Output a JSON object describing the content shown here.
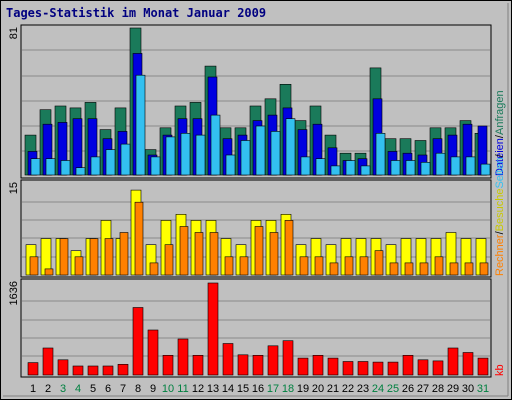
{
  "chart_data": {
    "type": "bar",
    "title": "Tages-Statistik im Monat Januar 2009",
    "days": [
      "1",
      "2",
      "3",
      "4",
      "5",
      "6",
      "7",
      "8",
      "9",
      "10",
      "11",
      "12",
      "13",
      "14",
      "15",
      "16",
      "17",
      "18",
      "19",
      "20",
      "21",
      "22",
      "23",
      "24",
      "25",
      "26",
      "27",
      "28",
      "29",
      "30",
      "31"
    ],
    "weekend_days": [
      "3",
      "4",
      "10",
      "11",
      "17",
      "18",
      "24",
      "25",
      "31"
    ],
    "panels": [
      {
        "id": "top",
        "max_label": "81",
        "ymax": 81,
        "series": [
          {
            "name": "Anfragen",
            "color": "#1a7a5a",
            "values": [
              22,
              36,
              38,
              37,
              40,
              25,
              37,
              81,
              14,
              26,
              38,
              40,
              60,
              26,
              26,
              38,
              42,
              50,
              30,
              38,
              22,
              12,
              12,
              59,
              20,
              20,
              19,
              26,
              26,
              30,
              23
            ]
          },
          {
            "name": "Dateien",
            "color": "#0000e0",
            "values": [
              13,
              28,
              29,
              31,
              31,
              20,
              24,
              67,
              11,
              22,
              31,
              31,
              54,
              20,
              22,
              30,
              33,
              37,
              25,
              28,
              15,
              8,
              9,
              42,
              13,
              12,
              11,
              20,
              22,
              28,
              27
            ]
          },
          {
            "name": "Seiten",
            "color": "#33c0f0",
            "values": [
              9,
              9,
              8,
              4,
              10,
              14,
              17,
              55,
              10,
              21,
              23,
              22,
              33,
              11,
              19,
              27,
              24,
              31,
              10,
              9,
              5,
              8,
              5,
              23,
              8,
              8,
              7,
              12,
              10,
              10,
              6
            ]
          }
        ]
      },
      {
        "id": "mid",
        "max_label": "15",
        "ymax": 15,
        "series": [
          {
            "name": "Besuche",
            "color": "#ffff00",
            "values": [
              5,
              6,
              6,
              4,
              6,
              9,
              6,
              14,
              5,
              9,
              10,
              9,
              9,
              6,
              5,
              9,
              9,
              10,
              5,
              6,
              5,
              6,
              6,
              6,
              5,
              6,
              6,
              6,
              7,
              6,
              6
            ]
          },
          {
            "name": "Rechner",
            "color": "#ff8000",
            "values": [
              3,
              1,
              6,
              3,
              6,
              6,
              7,
              12,
              2,
              5,
              8,
              7,
              7,
              3,
              3,
              8,
              7,
              9,
              3,
              3,
              2,
              3,
              3,
              4,
              2,
              2,
              2,
              3,
              2,
              2,
              2
            ]
          }
        ]
      },
      {
        "id": "bot",
        "max_label": "1636",
        "ymax": 1636,
        "series": [
          {
            "name": "kb",
            "color": "#ff0000",
            "values": [
              220,
              480,
              270,
              160,
              160,
              160,
              190,
              1200,
              800,
              350,
              640,
              350,
              1636,
              560,
              360,
              350,
              520,
              610,
              300,
              350,
              300,
              240,
              240,
              230,
              230,
              350,
              270,
              250,
              480,
              400,
              300
            ]
          }
        ]
      }
    ],
    "legend_right": {
      "top": [
        {
          "label": "Dateien",
          "color": "#0000e0"
        },
        {
          "label": "/",
          "color": "#000000"
        },
        {
          "label": "Anfragen",
          "color": "#1a7a5a"
        }
      ],
      "mid": [
        {
          "label": "Rechner",
          "color": "#ff8000"
        },
        {
          "label": "/",
          "color": "#000000"
        },
        {
          "label": "Besuche",
          "color": "#c8c800"
        },
        {
          "label": "Seiten",
          "color": "#33c0f0"
        },
        {
          "label": "/",
          "color": "#000000"
        }
      ],
      "bot": [
        {
          "label": "kb",
          "color": "#ff0000"
        }
      ]
    },
    "colors": {
      "background": "#c0c0c0",
      "title": "#000080",
      "weekday_label": "#000000",
      "weekend_label": "#008040"
    }
  }
}
